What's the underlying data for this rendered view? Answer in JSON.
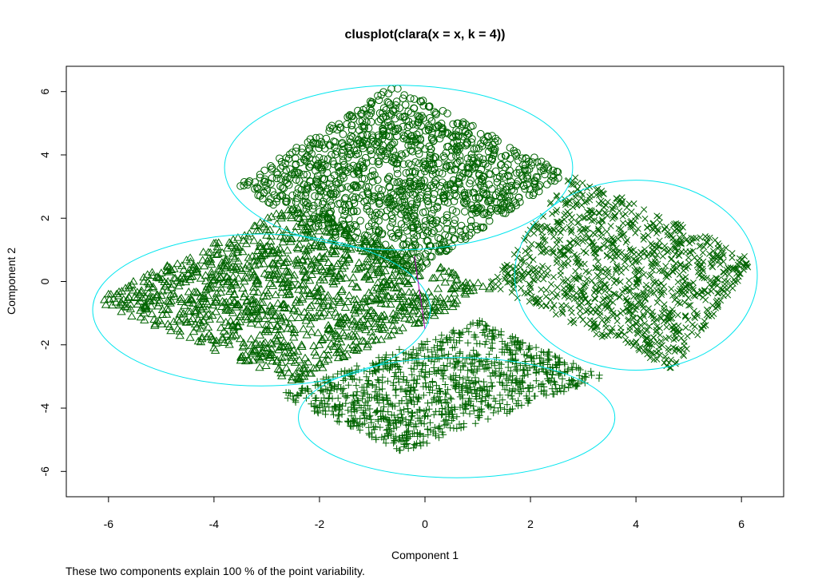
{
  "chart_data": {
    "type": "scatter",
    "title": "clusplot(clara(x = x, k = 4))",
    "xlabel": "Component 1",
    "ylabel": "Component 2",
    "xlim": [
      -6.8,
      6.8
    ],
    "ylim": [
      -6.8,
      6.8
    ],
    "x_ticks": [
      -6,
      -4,
      -2,
      0,
      2,
      4,
      6
    ],
    "y_ticks": [
      -6,
      -4,
      -2,
      0,
      2,
      4,
      6
    ],
    "x_tick_labels": [
      "-6",
      "-4",
      "-2",
      "0",
      "2",
      "4",
      "6"
    ],
    "y_tick_labels": [
      "-6",
      "-4",
      "-2",
      "0",
      "2",
      "4",
      "6"
    ],
    "grid": false,
    "point_color": "#006400",
    "ellipse_color": "#00e5ee",
    "segment_color": "#b000b0",
    "clusters": [
      {
        "marker": "circle",
        "center": [
          -0.5,
          3.6
        ],
        "semi_axes": [
          3.3,
          2.6
        ],
        "corners": [
          [
            -0.6,
            6.2
          ],
          [
            2.7,
            3.4
          ],
          [
            -0.3,
            0.3
          ],
          [
            -3.6,
            3.0
          ]
        ]
      },
      {
        "marker": "triangle",
        "center": [
          -3.1,
          -0.9
        ],
        "semi_axes": [
          3.2,
          2.4
        ],
        "corners": [
          [
            -2.5,
            2.4
          ],
          [
            1.3,
            -0.2
          ],
          [
            -2.9,
            -3.9
          ],
          [
            -6.3,
            -0.6
          ]
        ]
      },
      {
        "marker": "cross",
        "center": [
          4.0,
          0.2
        ],
        "semi_axes": [
          2.3,
          3.0
        ],
        "corners": [
          [
            2.8,
            3.4
          ],
          [
            6.3,
            0.7
          ],
          [
            3.4,
            -2.8
          ],
          [
            1.2,
            -0.1
          ]
        ]
      },
      {
        "marker": "plus",
        "center": [
          0.6,
          -4.3
        ],
        "semi_axes": [
          3.0,
          1.9
        ],
        "corners": [
          [
            1.0,
            -1.2
          ],
          [
            3.4,
            -3.0
          ],
          [
            0.8,
            -6.2
          ],
          [
            -2.8,
            -3.6
          ]
        ]
      }
    ],
    "segments": [
      {
        "from": [
          -0.2,
          0.8
        ],
        "to": [
          0.0,
          -1.5
        ]
      }
    ],
    "note": "These two components explain 100 % of the point variability."
  }
}
